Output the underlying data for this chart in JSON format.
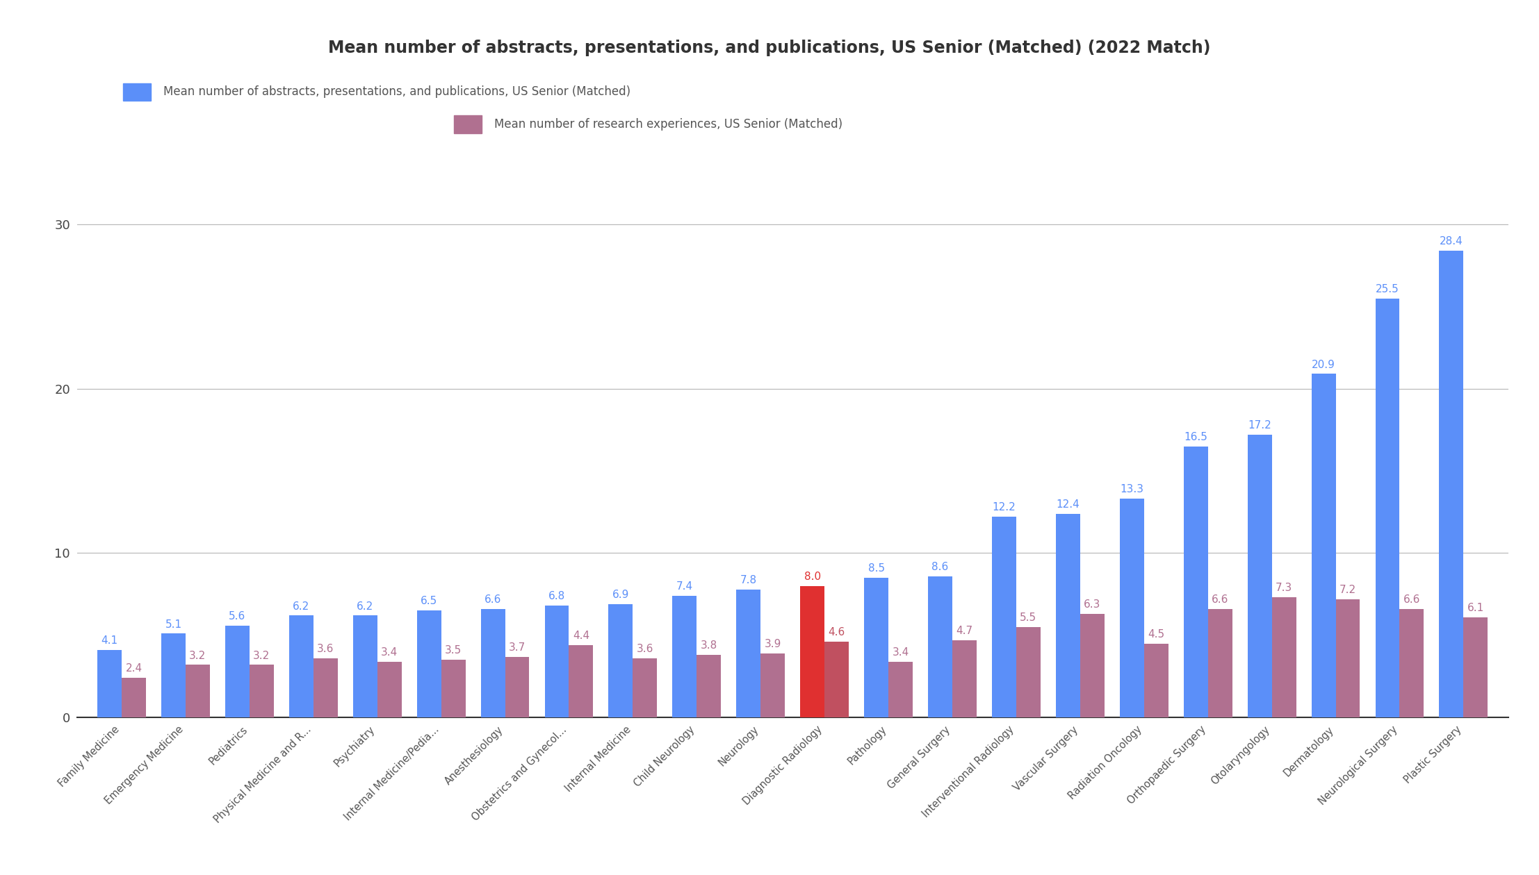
{
  "title": "Mean number of abstracts, presentations, and publications, US Senior (Matched) (2022 Match)",
  "legend1": "Mean number of abstracts, presentations, and publications, US Senior (Matched)",
  "legend2": "Mean number of research experiences, US Senior (Matched)",
  "categories": [
    "Family Medicine",
    "Emergency Medicine",
    "Pediatrics",
    "Physical Medicine and R...",
    "Psychiatry",
    "Internal Medicine/Pedia...",
    "Anesthesiology",
    "Obstetrics and Gynecol...",
    "Internal Medicine",
    "Child Neurology",
    "Neurology",
    "Diagnostic Radiology",
    "Pathology",
    "General Surgery",
    "Interventional Radiology",
    "Vascular Surgery",
    "Radiation Oncology",
    "Orthopaedic Surgery",
    "Otolaryngology",
    "Dermatology",
    "Neurological Surgery",
    "Plastic Surgery"
  ],
  "blue_values": [
    4.1,
    5.1,
    5.6,
    6.2,
    6.2,
    6.5,
    6.6,
    6.8,
    6.9,
    7.4,
    7.8,
    8.0,
    8.5,
    8.6,
    12.2,
    12.4,
    13.3,
    16.5,
    17.2,
    20.9,
    25.5,
    28.4
  ],
  "pink_values": [
    2.4,
    3.2,
    3.2,
    3.6,
    3.4,
    3.5,
    3.7,
    4.4,
    3.6,
    3.8,
    3.9,
    4.6,
    3.4,
    4.7,
    5.5,
    6.3,
    4.5,
    6.6,
    7.3,
    7.2,
    6.6,
    6.1
  ],
  "blue_color": "#5B8FF9",
  "pink_color": "#B07090",
  "red_color": "#E03030",
  "red_pink_color": "#C05060",
  "highlight_index": 11,
  "ylim": [
    0,
    33
  ],
  "yticks": [
    0,
    10,
    20,
    30
  ],
  "background_color": "#ffffff",
  "title_fontsize": 17,
  "label_fontsize": 11,
  "tick_fontsize": 13,
  "bar_width": 0.38,
  "grid_color": "#bbbbbb"
}
